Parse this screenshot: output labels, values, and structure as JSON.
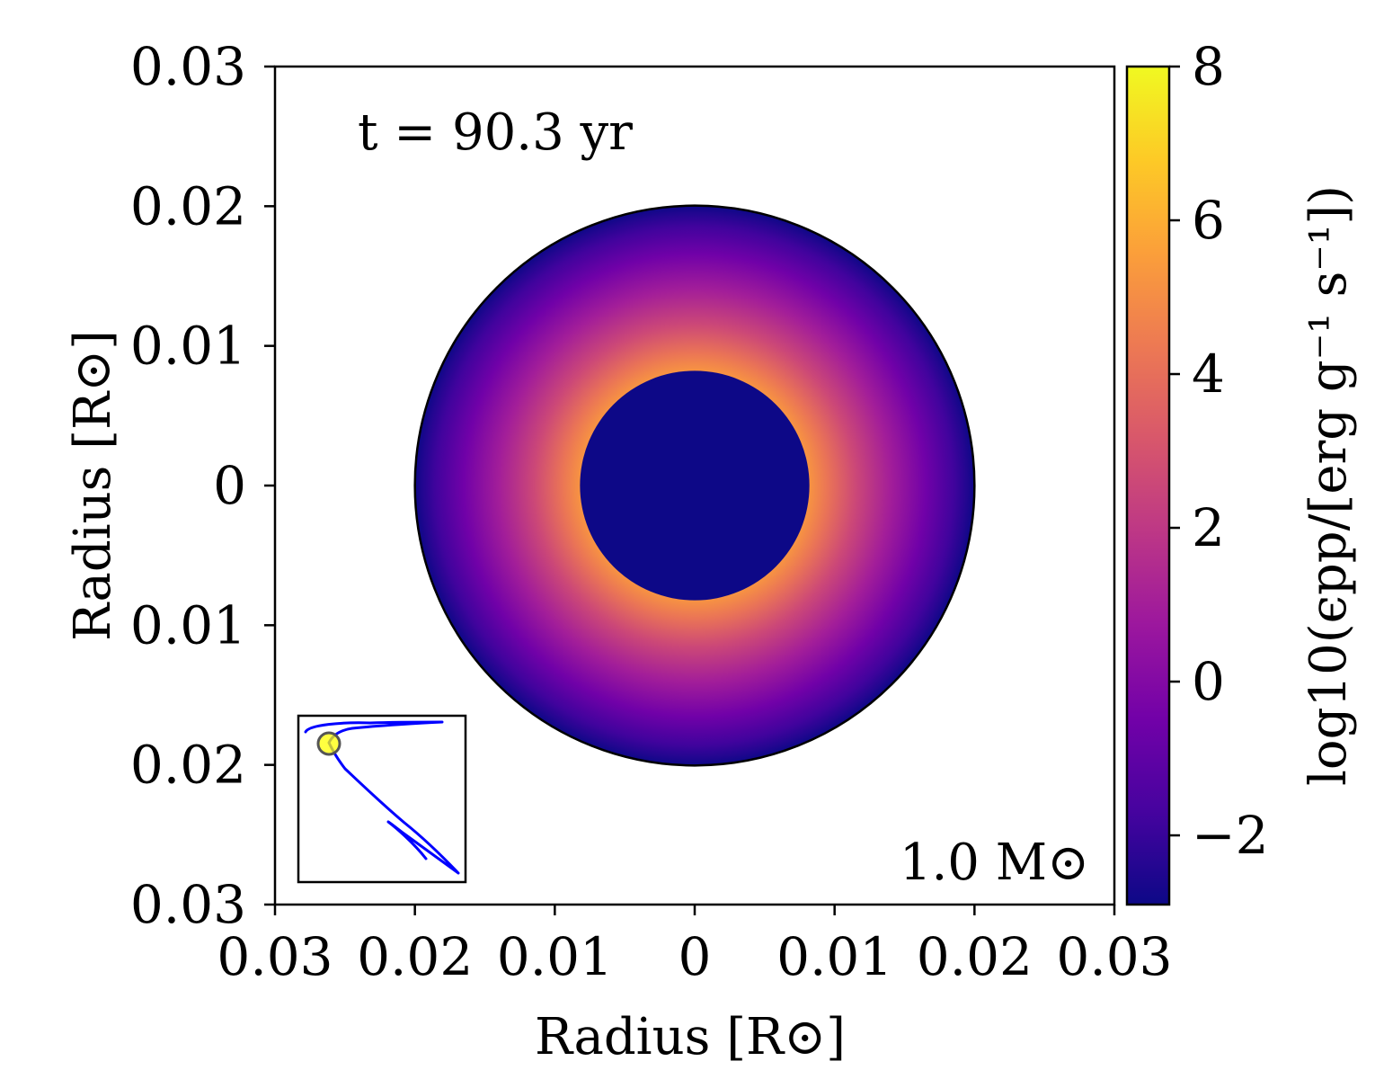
{
  "chart_data": {
    "type": "heatmap",
    "title": "",
    "xlabel": "Radius [R⊙]",
    "ylabel": "Radius [R⊙]",
    "xlim": [
      -0.03,
      0.03
    ],
    "ylim": [
      -0.03,
      0.03
    ],
    "x_ticks": [
      -0.03,
      -0.02,
      -0.01,
      0,
      0.01,
      0.02,
      0.03
    ],
    "x_tick_labels": [
      "0.03",
      "0.02",
      "0.01",
      "0",
      "0.01",
      "0.02",
      "0.03"
    ],
    "y_ticks": [
      0.03,
      0.02,
      0.01,
      0,
      -0.01,
      -0.02,
      -0.03
    ],
    "y_tick_labels": [
      "0.03",
      "0.02",
      "0.01",
      "0",
      "0.01",
      "0.02",
      "0.03"
    ],
    "grid": false,
    "annotation_time": "t = 90.3 yr",
    "annotation_mass": "1.0 M⊙",
    "star": {
      "outer_radius": 0.02,
      "inner_core_radius": 0.0082,
      "core_value": -2.9,
      "shell_profile": [
        {
          "r": 0.0082,
          "value": 5.2
        },
        {
          "r": 0.0095,
          "value": 4.2
        },
        {
          "r": 0.0115,
          "value": 2.6
        },
        {
          "r": 0.014,
          "value": 1.0
        },
        {
          "r": 0.0165,
          "value": -0.5
        },
        {
          "r": 0.0185,
          "value": -1.8
        },
        {
          "r": 0.0195,
          "value": -2.5
        },
        {
          "r": 0.02,
          "value": -2.9
        }
      ]
    },
    "colorbar": {
      "label": "log10(ϵpp/[erg g⁻¹ s⁻¹])",
      "vmin": -2.9,
      "vmax": 8,
      "ticks": [
        -2,
        0,
        2,
        4,
        6,
        8
      ],
      "tick_labels": [
        "−2",
        "0",
        "2",
        "4",
        "6",
        "8"
      ],
      "colormap": "plasma",
      "stops": [
        "#0d0887",
        "#46039f",
        "#7201a8",
        "#9c179e",
        "#bd3786",
        "#d8576b",
        "#ed7953",
        "#fb9f3a",
        "#fdca26",
        "#f0f921"
      ]
    },
    "inset": {
      "track_color": "#0000ff",
      "marker_fill": "#ffff00",
      "marker_edge": "#555555"
    }
  }
}
